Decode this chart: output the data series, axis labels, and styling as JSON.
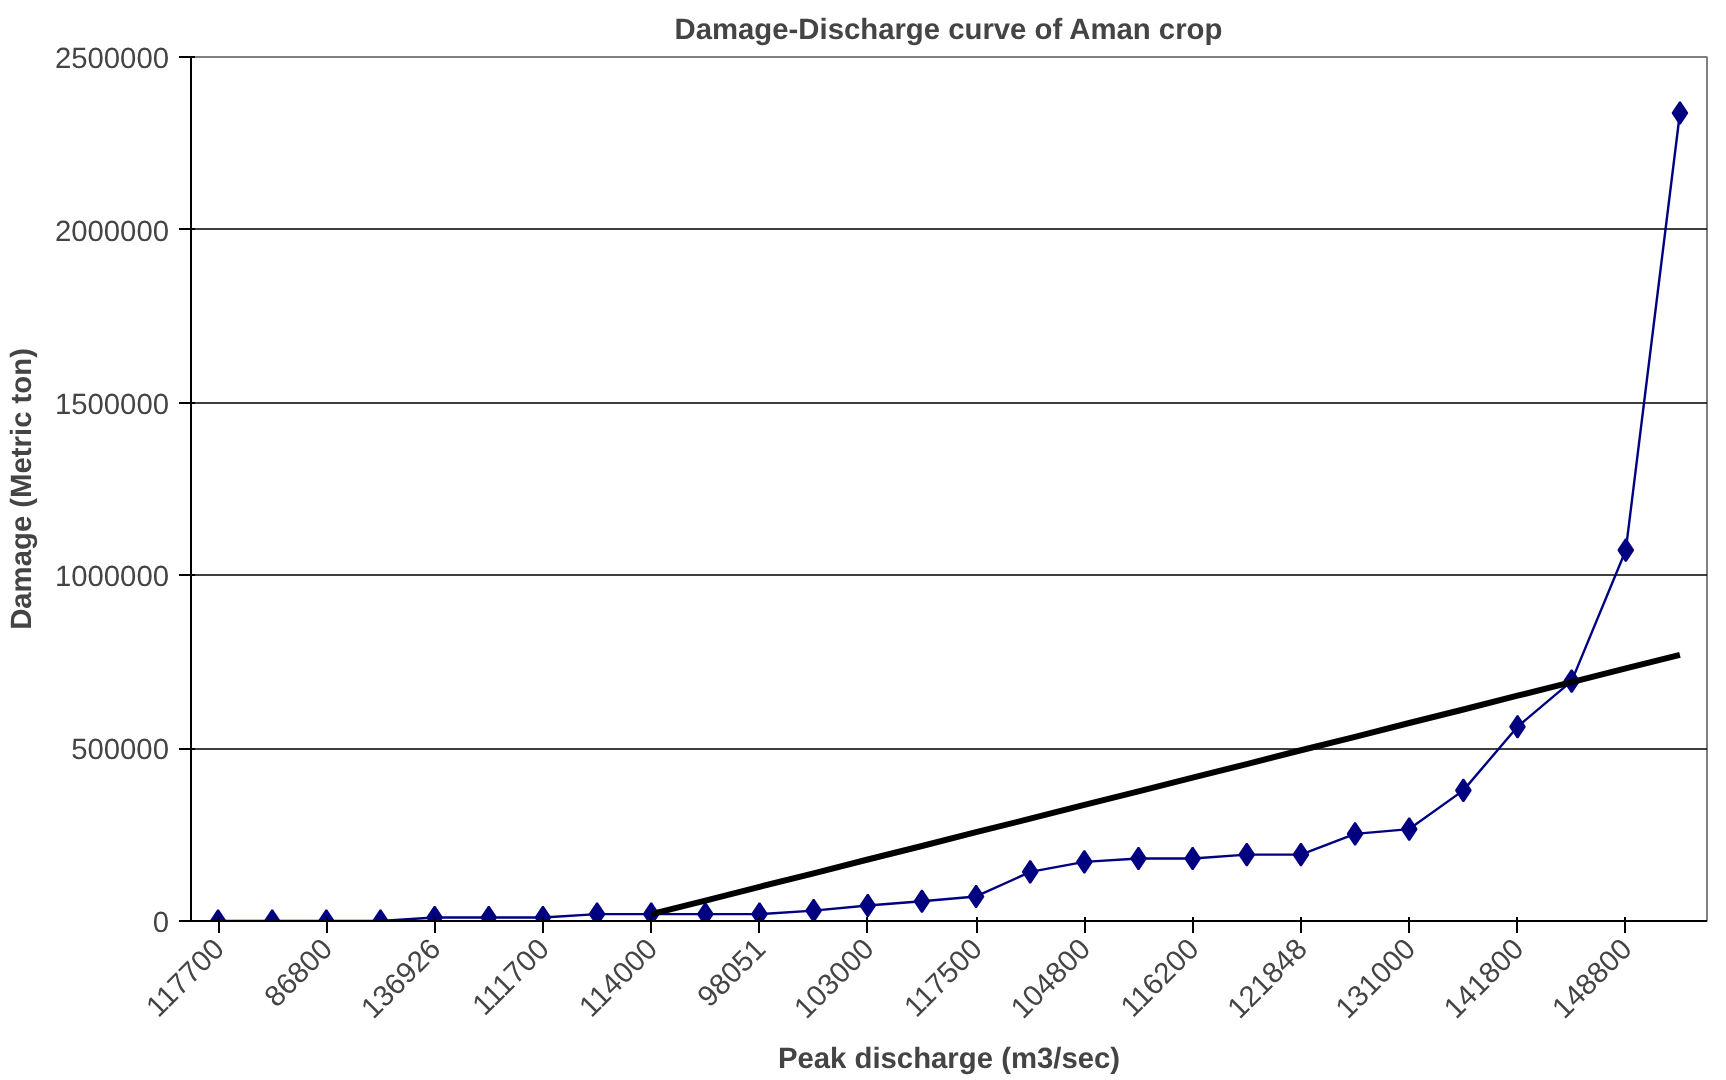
{
  "chart_data": {
    "type": "line",
    "title": "Damage-Discharge curve of Aman crop",
    "xlabel": "Peak discharge (m3/sec)",
    "ylabel": "Damage (Metric ton)",
    "categories": [
      "117700",
      null,
      "86800",
      null,
      "136926",
      null,
      "111700",
      null,
      "114000",
      null,
      "98051",
      null,
      "103000",
      null,
      "117500",
      null,
      "104800",
      null,
      "116200",
      null,
      "121848",
      null,
      "131000",
      null,
      "141800",
      null,
      "148800",
      null
    ],
    "series": [
      {
        "color": "#000080",
        "marker": "diamond",
        "values": [
          0,
          0,
          0,
          0,
          10000,
          10000,
          10000,
          20000,
          20000,
          20000,
          20000,
          30000,
          45000,
          57000,
          71000,
          142000,
          171000,
          181000,
          181000,
          192000,
          192000,
          252000,
          266000,
          378000,
          562000,
          694000,
          1073000,
          2338000
        ]
      },
      {
        "color": "#000000",
        "marker": "none",
        "values": [
          null,
          null,
          null,
          null,
          null,
          null,
          null,
          null,
          20000,
          59000,
          99000,
          138000,
          178000,
          217000,
          257000,
          296000,
          336000,
          375000,
          415000,
          454000,
          494000,
          533000,
          573000,
          612000,
          652000,
          691000,
          731000,
          770000
        ]
      }
    ],
    "ylim": [
      0,
      2500000
    ],
    "yticks": [
      0,
      500000,
      1000000,
      1500000,
      2000000,
      2500000
    ],
    "grid": "y"
  }
}
